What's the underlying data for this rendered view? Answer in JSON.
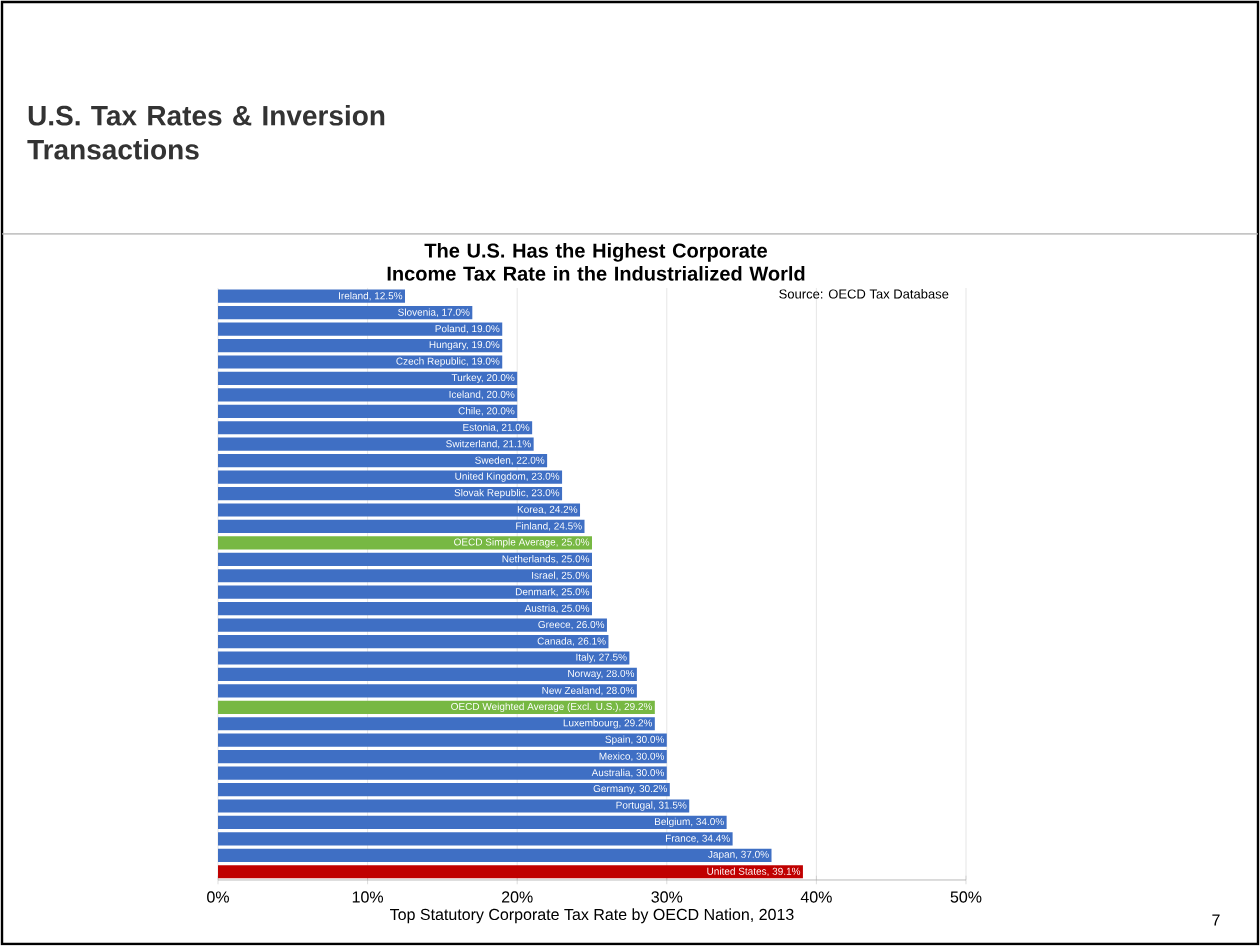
{
  "chart_data": {
    "type": "bar",
    "orientation": "horizontal",
    "title": "U.S. Tax Rates & Inversion Transactions",
    "subtitle": "The U.S. Has the Highest Corporate Income Tax Rate in the Industrialized World",
    "xlabel": "Top Statutory Corporate Tax Rate by OECD Nation, 2013",
    "annotations": [
      "Source: OECD Tax Database",
      "7"
    ],
    "categories": [
      "Ireland, 12.5%",
      "Slovenia, 17.0%",
      "Poland, 19.0%",
      "Hungary, 19.0%",
      "Czech Republic, 19.0%",
      "Turkey, 20.0%",
      "Iceland, 20.0%",
      "Chile, 20.0%",
      "Estonia, 21.0%",
      "Switzerland, 21.1%",
      "Sweden, 22.0%",
      "United Kingdom, 23.0%",
      "Slovak Republic, 23.0%",
      "Korea, 24.2%",
      "Finland, 24.5%",
      "OECD Simple Average, 25.0%",
      "Netherlands, 25.0%",
      "Israel, 25.0%",
      "Denmark, 25.0%",
      "Austria, 25.0%",
      "Greece, 26.0%",
      "Canada, 26.1%",
      "Italy, 27.5%",
      "Norway, 28.0%",
      "New Zealand, 28.0%",
      "OECD Weighted Average (Excl. U.S.), 29.2%",
      "Luxembourg, 29.2%",
      "Spain, 30.0%",
      "Mexico, 30.0%",
      "Australia, 30.0%",
      "Germany, 30.2%",
      "Portugal, 31.5%",
      "Belgium, 34.0%",
      "France, 34.4%",
      "Japan, 37.0%",
      "United States, 39.1%"
    ],
    "values": [
      12.5,
      17.0,
      19.0,
      19.0,
      19.0,
      20.0,
      20.0,
      20.0,
      21.0,
      21.1,
      22.0,
      23.0,
      23.0,
      24.2,
      24.5,
      25.0,
      25.0,
      25.0,
      25.0,
      25.0,
      26.0,
      26.1,
      27.5,
      28.0,
      28.0,
      29.2,
      29.2,
      30.0,
      30.0,
      30.0,
      30.2,
      31.5,
      34.0,
      34.4,
      37.0,
      39.1
    ],
    "colors": [
      "#3f6fc4",
      "#3f6fc4",
      "#3f6fc4",
      "#3f6fc4",
      "#3f6fc4",
      "#3f6fc4",
      "#3f6fc4",
      "#3f6fc4",
      "#3f6fc4",
      "#3f6fc4",
      "#3f6fc4",
      "#3f6fc4",
      "#3f6fc4",
      "#3f6fc4",
      "#3f6fc4",
      "#77b843",
      "#3f6fc4",
      "#3f6fc4",
      "#3f6fc4",
      "#3f6fc4",
      "#3f6fc4",
      "#3f6fc4",
      "#3f6fc4",
      "#3f6fc4",
      "#3f6fc4",
      "#77b843",
      "#3f6fc4",
      "#3f6fc4",
      "#3f6fc4",
      "#3f6fc4",
      "#3f6fc4",
      "#3f6fc4",
      "#3f6fc4",
      "#3f6fc4",
      "#3f6fc4",
      "#c00000"
    ],
    "xlim": [
      0,
      50
    ],
    "xticks": [
      {
        "value": 0,
        "label": "0%"
      },
      {
        "value": 10,
        "label": "10%"
      },
      {
        "value": 20,
        "label": "20%"
      },
      {
        "value": 30,
        "label": "30%"
      },
      {
        "value": 40,
        "label": "40%"
      },
      {
        "value": 50,
        "label": "50%"
      }
    ],
    "grid": "x",
    "tick_labels": "x"
  }
}
